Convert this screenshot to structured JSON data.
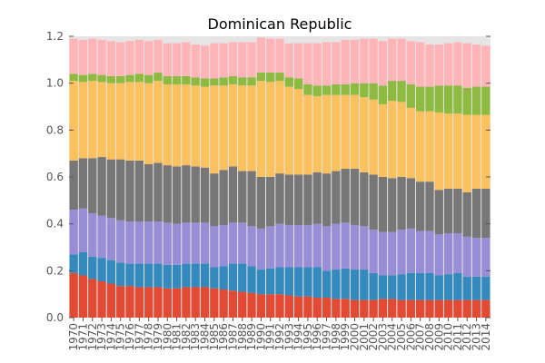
{
  "chart_data": {
    "type": "bar",
    "stacked": true,
    "title": "Dominican Republic",
    "xlabel": "",
    "ylabel": "",
    "ylim": [
      0,
      1.2
    ],
    "yticks": [
      "0.0",
      "0.2",
      "0.4",
      "0.6",
      "0.8",
      "1.0",
      "1.2"
    ],
    "grid": false,
    "legend": "none",
    "background": "#E5E5E5",
    "categories": [
      "1970",
      "1971",
      "1972",
      "1973",
      "1974",
      "1975",
      "1976",
      "1977",
      "1978",
      "1979",
      "1980",
      "1981",
      "1982",
      "1983",
      "1984",
      "1985",
      "1986",
      "1987",
      "1988",
      "1989",
      "1990",
      "1991",
      "1992",
      "1993",
      "1994",
      "1995",
      "1996",
      "1997",
      "1998",
      "1999",
      "2000",
      "2001",
      "2002",
      "2003",
      "2004",
      "2005",
      "2006",
      "2007",
      "2008",
      "2009",
      "2010",
      "2011",
      "2012",
      "2013",
      "2014"
    ],
    "series": [
      {
        "color": "#E24A33",
        "values": [
          0.19,
          0.18,
          0.165,
          0.155,
          0.145,
          0.135,
          0.135,
          0.13,
          0.13,
          0.13,
          0.125,
          0.125,
          0.13,
          0.13,
          0.13,
          0.125,
          0.12,
          0.115,
          0.11,
          0.105,
          0.1,
          0.1,
          0.1,
          0.095,
          0.09,
          0.09,
          0.085,
          0.085,
          0.08,
          0.08,
          0.075,
          0.075,
          0.075,
          0.08,
          0.08,
          0.075,
          0.075,
          0.075,
          0.075,
          0.075,
          0.075,
          0.075,
          0.075,
          0.075,
          0.075
        ]
      },
      {
        "color": "#348ABD",
        "values": [
          0.08,
          0.1,
          0.095,
          0.1,
          0.1,
          0.1,
          0.095,
          0.1,
          0.1,
          0.1,
          0.1,
          0.1,
          0.1,
          0.1,
          0.1,
          0.09,
          0.1,
          0.115,
          0.12,
          0.115,
          0.105,
          0.11,
          0.115,
          0.12,
          0.125,
          0.125,
          0.13,
          0.115,
          0.125,
          0.13,
          0.13,
          0.13,
          0.115,
          0.1,
          0.1,
          0.11,
          0.115,
          0.115,
          0.115,
          0.105,
          0.11,
          0.115,
          0.1,
          0.1,
          0.1
        ]
      },
      {
        "color": "#988ED5",
        "values": [
          0.19,
          0.185,
          0.185,
          0.18,
          0.18,
          0.18,
          0.18,
          0.18,
          0.18,
          0.18,
          0.18,
          0.175,
          0.175,
          0.175,
          0.175,
          0.175,
          0.175,
          0.175,
          0.175,
          0.17,
          0.175,
          0.18,
          0.185,
          0.18,
          0.18,
          0.18,
          0.185,
          0.19,
          0.195,
          0.195,
          0.19,
          0.185,
          0.185,
          0.185,
          0.185,
          0.19,
          0.19,
          0.18,
          0.18,
          0.175,
          0.175,
          0.17,
          0.17,
          0.165,
          0.165
        ]
      },
      {
        "color": "#777777",
        "values": [
          0.21,
          0.215,
          0.235,
          0.25,
          0.25,
          0.26,
          0.26,
          0.26,
          0.245,
          0.25,
          0.245,
          0.245,
          0.245,
          0.24,
          0.235,
          0.225,
          0.235,
          0.24,
          0.22,
          0.235,
          0.22,
          0.21,
          0.215,
          0.215,
          0.215,
          0.215,
          0.22,
          0.225,
          0.225,
          0.23,
          0.24,
          0.23,
          0.235,
          0.235,
          0.23,
          0.225,
          0.215,
          0.21,
          0.21,
          0.19,
          0.19,
          0.19,
          0.19,
          0.21,
          0.21
        ]
      },
      {
        "color": "#FBC15E",
        "values": [
          0.34,
          0.325,
          0.33,
          0.32,
          0.325,
          0.325,
          0.335,
          0.335,
          0.345,
          0.35,
          0.345,
          0.35,
          0.345,
          0.345,
          0.345,
          0.375,
          0.36,
          0.35,
          0.365,
          0.365,
          0.41,
          0.405,
          0.395,
          0.375,
          0.365,
          0.34,
          0.325,
          0.335,
          0.325,
          0.315,
          0.315,
          0.32,
          0.32,
          0.31,
          0.33,
          0.32,
          0.3,
          0.3,
          0.3,
          0.33,
          0.32,
          0.32,
          0.33,
          0.315,
          0.315
        ]
      },
      {
        "color": "#8EBA42",
        "values": [
          0.03,
          0.03,
          0.03,
          0.03,
          0.03,
          0.03,
          0.03,
          0.035,
          0.035,
          0.035,
          0.035,
          0.035,
          0.035,
          0.035,
          0.035,
          0.03,
          0.035,
          0.035,
          0.035,
          0.035,
          0.035,
          0.04,
          0.035,
          0.04,
          0.045,
          0.045,
          0.045,
          0.04,
          0.045,
          0.045,
          0.05,
          0.06,
          0.07,
          0.08,
          0.085,
          0.09,
          0.1,
          0.105,
          0.105,
          0.115,
          0.12,
          0.12,
          0.115,
          0.12,
          0.12
        ]
      },
      {
        "color": "#FFB5B8",
        "values": [
          0.15,
          0.15,
          0.15,
          0.15,
          0.15,
          0.145,
          0.145,
          0.145,
          0.145,
          0.14,
          0.14,
          0.14,
          0.145,
          0.14,
          0.14,
          0.15,
          0.145,
          0.145,
          0.15,
          0.15,
          0.15,
          0.145,
          0.145,
          0.145,
          0.15,
          0.175,
          0.18,
          0.185,
          0.18,
          0.19,
          0.185,
          0.19,
          0.19,
          0.19,
          0.18,
          0.18,
          0.185,
          0.19,
          0.18,
          0.175,
          0.18,
          0.185,
          0.19,
          0.18,
          0.175
        ]
      }
    ]
  }
}
